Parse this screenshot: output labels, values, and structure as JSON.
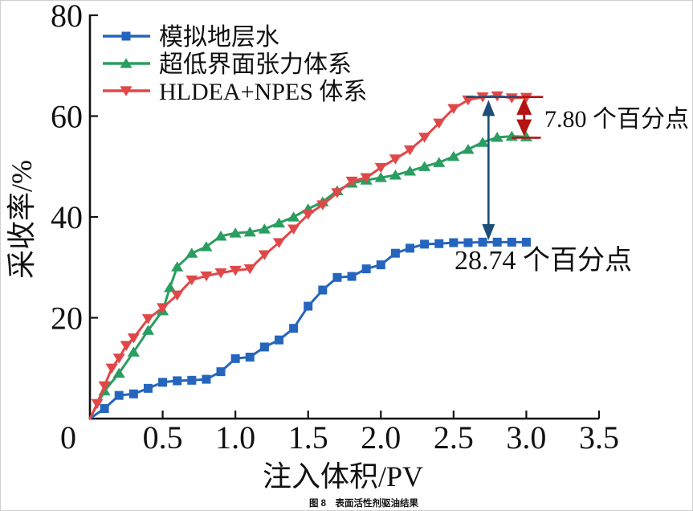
{
  "figure": {
    "caption": "图 8　表面活性剂驱油结果"
  },
  "chart_data": {
    "type": "line",
    "title": "",
    "xlabel": "注入体积/PV",
    "ylabel": "采收率/%",
    "xlim": [
      0,
      3.5
    ],
    "ylim": [
      0,
      80
    ],
    "xtick_values": [
      0,
      0.5,
      1.0,
      1.5,
      2.0,
      2.5,
      3.0,
      3.5
    ],
    "xtick_labels": [
      "0",
      "0.5",
      "1.0",
      "1.5",
      "2.0",
      "2.5",
      "3.0",
      "3.5"
    ],
    "ytick_values": [
      20,
      40,
      60,
      80
    ],
    "ytick_labels": [
      "20",
      "40",
      "60",
      "80"
    ],
    "grid": false,
    "legend_position": "top-left",
    "axis_color": "#111111",
    "series": [
      {
        "name": "模拟地层水",
        "color": "#2565be",
        "marker": "square",
        "x": [
          0,
          0.1,
          0.2,
          0.3,
          0.4,
          0.5,
          0.6,
          0.7,
          0.8,
          0.9,
          1.0,
          1.1,
          1.2,
          1.3,
          1.4,
          1.5,
          1.6,
          1.7,
          1.8,
          1.9,
          2.0,
          2.1,
          2.2,
          2.3,
          2.4,
          2.5,
          2.6,
          2.7,
          2.8,
          2.9,
          3.0
        ],
        "y": [
          0,
          2.0,
          4.6,
          4.9,
          6.0,
          7.2,
          7.5,
          7.6,
          7.8,
          9.3,
          11.9,
          12.2,
          14.2,
          15.6,
          17.9,
          22.3,
          25.5,
          28.0,
          28.2,
          29.7,
          30.5,
          32.8,
          33.8,
          34.6,
          34.7,
          34.9,
          34.9,
          35.0,
          35.0,
          35.0,
          35.0
        ]
      },
      {
        "name": "超低界面张力体系",
        "color": "#2a9e60",
        "marker": "triangle-up",
        "x": [
          0,
          0.1,
          0.2,
          0.3,
          0.4,
          0.5,
          0.55,
          0.6,
          0.7,
          0.8,
          0.9,
          1.0,
          1.1,
          1.2,
          1.3,
          1.4,
          1.5,
          1.6,
          1.7,
          1.8,
          1.9,
          2.0,
          2.1,
          2.2,
          2.3,
          2.4,
          2.5,
          2.6,
          2.7,
          2.8,
          2.9,
          3.0
        ],
        "y": [
          0,
          5.5,
          9.0,
          13.2,
          17.5,
          21.4,
          26.0,
          30.1,
          32.8,
          34.1,
          36.2,
          36.8,
          37.0,
          37.6,
          38.8,
          40.0,
          41.6,
          43.0,
          45.2,
          46.7,
          47.3,
          47.8,
          48.3,
          49.1,
          50.0,
          50.8,
          52.0,
          53.4,
          54.8,
          55.8,
          56.0,
          55.9
        ]
      },
      {
        "name": "HLDEA+NPES 体系",
        "color": "#e04848",
        "marker": "triangle-down",
        "x": [
          0,
          0.05,
          0.1,
          0.15,
          0.2,
          0.25,
          0.3,
          0.4,
          0.5,
          0.6,
          0.7,
          0.8,
          0.9,
          1.0,
          1.1,
          1.2,
          1.3,
          1.4,
          1.5,
          1.6,
          1.7,
          1.8,
          1.9,
          2.0,
          2.1,
          2.2,
          2.3,
          2.4,
          2.5,
          2.6,
          2.7,
          2.8,
          2.9,
          3.0
        ],
        "y": [
          0,
          3.0,
          6.5,
          10.0,
          12.0,
          14.5,
          16.0,
          19.8,
          22.0,
          24.5,
          27.5,
          28.3,
          28.9,
          29.4,
          29.7,
          32.5,
          34.9,
          37.6,
          40.5,
          42.4,
          44.8,
          47.1,
          47.8,
          49.8,
          51.5,
          53.3,
          55.8,
          58.6,
          61.5,
          63.2,
          63.8,
          64.0,
          63.6,
          63.7
        ]
      }
    ],
    "annotations": [
      {
        "id": "gap-red-vs-green",
        "text": "7.80 个百分点",
        "color": "#b51212",
        "x": 2.985,
        "y_from": 63.6,
        "y_to": 56.0,
        "caps": [
          [
            2.9,
            3.115,
            63.8
          ],
          [
            2.9,
            3.1,
            55.7
          ]
        ],
        "label_pos": "right"
      },
      {
        "id": "gap-red-vs-blue",
        "text": "28.74 个百分点",
        "color": "#1d4e79",
        "x": 2.74,
        "y_from": 63.2,
        "y_to": 35.4,
        "caps": [
          [
            2.585,
            2.945,
            63.8
          ]
        ],
        "label_pos": "below"
      }
    ]
  }
}
